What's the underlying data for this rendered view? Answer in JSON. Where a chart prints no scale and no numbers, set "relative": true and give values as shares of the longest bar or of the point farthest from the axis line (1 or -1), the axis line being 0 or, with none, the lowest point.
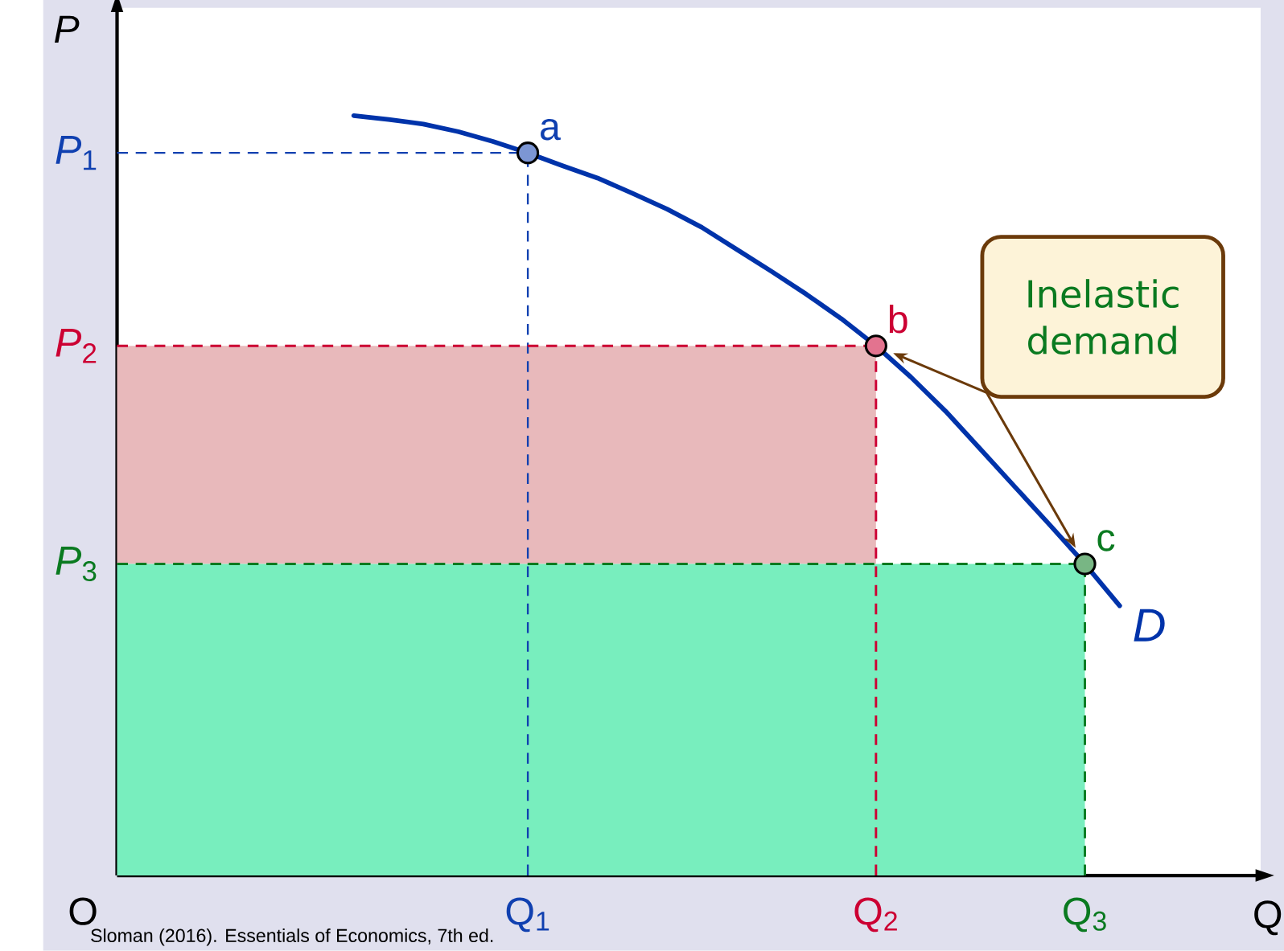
{
  "chart_data": {
    "type": "line",
    "relative": true,
    "xlabel": "Q",
    "categories": [
      null,
      null,
      null,
      null,
      null,
      "Q$_{1}$",
      null,
      null,
      null,
      null,
      null,
      null,
      null,
      null,
      null,
      "Q$_{2}$",
      null,
      null,
      null,
      null,
      null,
      "Q$_{3}$",
      null
    ],
    "series": [
      {
        "name": "D",
        "color": "#0033aa",
        "values": [
          1.0,
          0.995,
          0.989,
          0.979,
          0.966,
          0.951,
          0.934,
          0.918,
          0.898,
          0.877,
          0.853,
          0.824,
          0.795,
          0.765,
          0.733,
          0.697,
          0.656,
          0.611,
          0.561,
          0.511,
          0.461,
          0.41,
          0.355
        ]
      }
    ],
    "bands": [
      {
        "axis": "y",
        "from": 0.41,
        "to": 0.697,
        "color": "#e8b9bb"
      },
      {
        "axis": "y",
        "from": 0,
        "to": 0.41,
        "color": "#78eebe"
      }
    ],
    "ref_lines": [
      {
        "axis": "y",
        "value": 0.951,
        "label": "*P*$_{1}$",
        "color": "#1040b0",
        "line_style": "dashed"
      },
      {
        "axis": "y",
        "value": 0.697,
        "label": "*P*$_{2}$",
        "color": "#cc0033",
        "line_style": "dashed"
      },
      {
        "axis": "y",
        "value": 0.41,
        "label": "*P*$_{3}$",
        "color": "#0a7a20",
        "line_style": "dashed"
      }
    ],
    "annotations": [
      "O",
      "a",
      "b",
      "c",
      "Inelastic demand",
      "Sloman (2016). Essentials of Economics, 7th ed.",
      "P"
    ]
  }
}
